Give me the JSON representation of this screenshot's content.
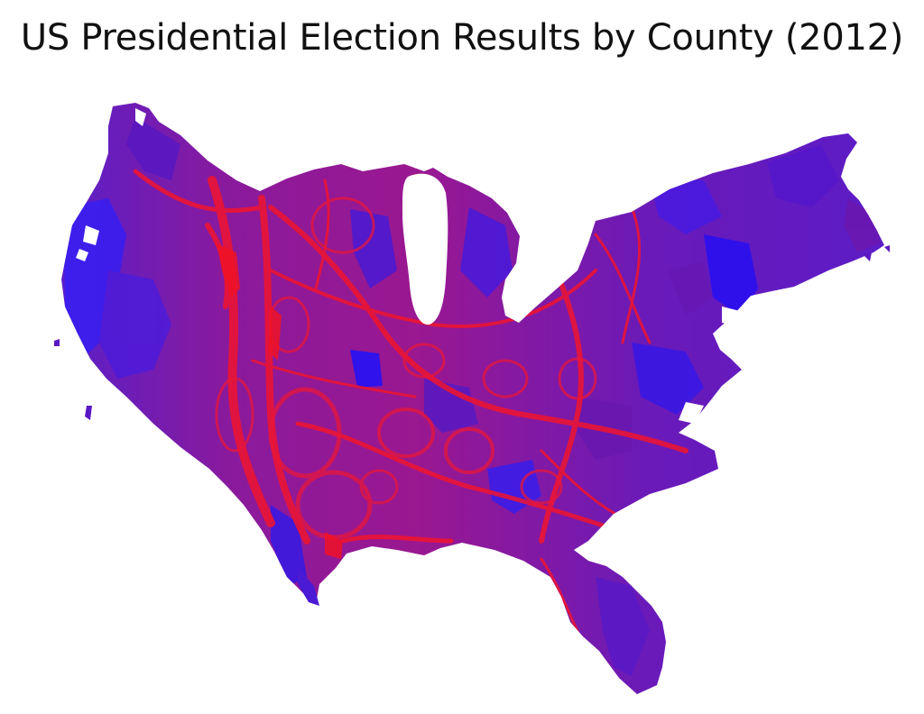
{
  "slide": {
    "title": "US Presidential Election Results by County (2012)"
  },
  "map": {
    "subject": "cartogram-united-states-counties",
    "palette": {
      "dem": "#2a1bf0",
      "rep": "#f01530",
      "mixed": "#7a1aa8",
      "deep_purple": "#5a16b8"
    }
  }
}
